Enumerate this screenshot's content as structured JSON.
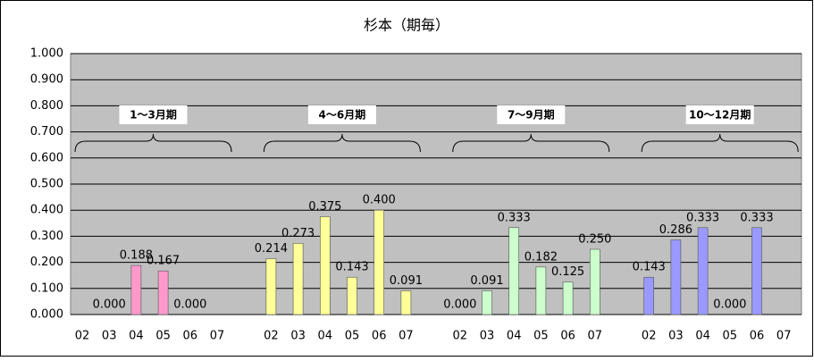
{
  "chart_data": {
    "type": "bar",
    "title": "杉本（期毎）",
    "ylim": [
      0,
      1
    ],
    "grid": true,
    "yticks": [
      {
        "value": 0,
        "label": "0.000"
      },
      {
        "value": 0.1,
        "label": "0.100"
      },
      {
        "value": 0.2,
        "label": "0.200"
      },
      {
        "value": 0.3,
        "label": "0.300"
      },
      {
        "value": 0.4,
        "label": "0.400"
      },
      {
        "value": 0.5,
        "label": "0.500"
      },
      {
        "value": 0.6,
        "label": "0.600"
      },
      {
        "value": 0.7,
        "label": "0.700"
      },
      {
        "value": 0.8,
        "label": "0.800"
      },
      {
        "value": 0.9,
        "label": "0.900"
      },
      {
        "value": 1,
        "label": "1.000"
      }
    ],
    "groups": [
      {
        "name": "1～3月期",
        "color": "#ff99cc",
        "categories": [
          "02",
          "03",
          "04",
          "05",
          "06",
          "07"
        ],
        "values": [
          null,
          0,
          0.188,
          0.167,
          0,
          null
        ],
        "value_labels": [
          null,
          "0.000",
          "0.188",
          "0.167",
          "0.000",
          null
        ]
      },
      {
        "name": "4～6月期",
        "color": "#ffff99",
        "categories": [
          "02",
          "03",
          "04",
          "05",
          "06",
          "07"
        ],
        "values": [
          0.214,
          0.273,
          0.375,
          0.143,
          0.4,
          0.091
        ],
        "value_labels": [
          "0.214",
          "0.273",
          "0.375",
          "0.143",
          "0.400",
          "0.091"
        ]
      },
      {
        "name": "7～9月期",
        "color": "#ccffcc",
        "categories": [
          "02",
          "03",
          "04",
          "05",
          "06",
          "07"
        ],
        "values": [
          0,
          0.091,
          0.333,
          0.182,
          0.125,
          0.25
        ],
        "value_labels": [
          "0.000",
          "0.091",
          "0.333",
          "0.182",
          "0.125",
          "0.250"
        ]
      },
      {
        "name": "10～12月期",
        "color": "#9999ff",
        "categories": [
          "02",
          "03",
          "04",
          "05",
          "06",
          "07"
        ],
        "values": [
          0.143,
          0.286,
          0.333,
          0,
          0.333,
          null
        ],
        "value_labels": [
          "0.143",
          "0.286",
          "0.333",
          "0.000",
          "0.333",
          null
        ]
      }
    ]
  }
}
